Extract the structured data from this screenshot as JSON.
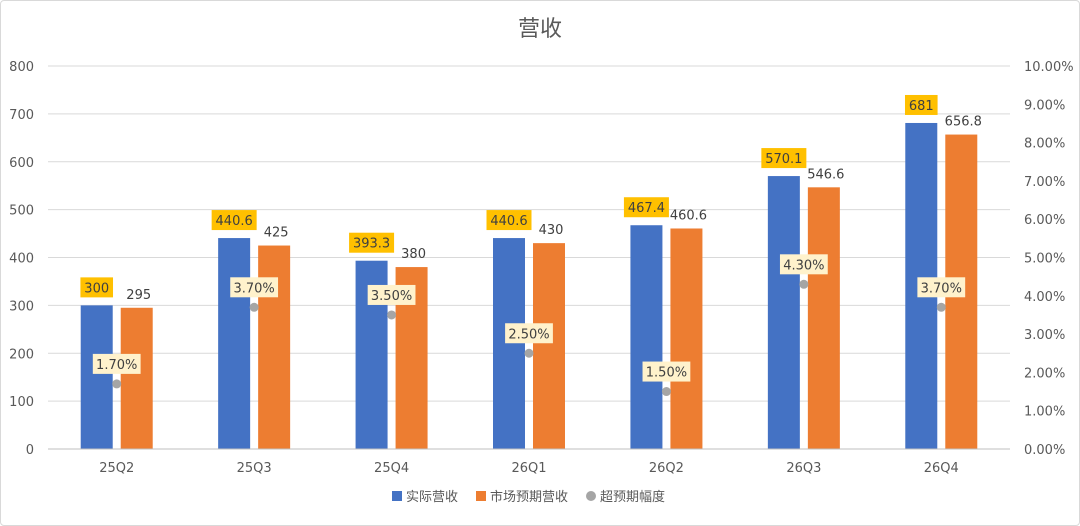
{
  "chart_data": {
    "type": "bar",
    "title": "营收",
    "categories": [
      "25Q2",
      "25Q3",
      "25Q4",
      "26Q1",
      "26Q2",
      "26Q3",
      "26Q4"
    ],
    "series": [
      {
        "name": "实际营收",
        "values": [
          300,
          440.6,
          393.3,
          440.6,
          467.4,
          570.1,
          681
        ],
        "labels": [
          "300",
          "440.6",
          "393.3",
          "440.6",
          "467.4",
          "570.1",
          "681"
        ],
        "color": "#4472c4",
        "axis": "left"
      },
      {
        "name": "市场预期营收",
        "values": [
          295,
          425,
          380,
          430,
          460.6,
          546.6,
          656.8
        ],
        "labels": [
          "295",
          "425",
          "380",
          "430",
          "460.6",
          "546.6",
          "656.8"
        ],
        "color": "#ed7d31",
        "axis": "left"
      },
      {
        "name": "超预期幅度",
        "type": "scatter",
        "values": [
          1.7,
          3.7,
          3.5,
          2.5,
          1.5,
          4.3,
          3.7
        ],
        "labels": [
          "1.70%",
          "3.70%",
          "3.50%",
          "2.50%",
          "1.50%",
          "4.30%",
          "3.70%"
        ],
        "color": "#a5a5a5",
        "axis": "right"
      }
    ],
    "y_left": {
      "range": [
        0,
        800
      ],
      "ticks": [
        "0",
        "100",
        "200",
        "300",
        "400",
        "500",
        "600",
        "700",
        "800"
      ]
    },
    "y_right": {
      "range": [
        0,
        10
      ],
      "ticks": [
        "0.00%",
        "1.00%",
        "2.00%",
        "3.00%",
        "4.00%",
        "5.00%",
        "6.00%",
        "7.00%",
        "8.00%",
        "9.00%",
        "10.00%"
      ]
    },
    "grid": true,
    "legend": "bottom",
    "label_colors": {
      "actual_bg": "#ffc000",
      "pct_bg": "#fff2cc",
      "grid": "#d9d9d9",
      "axis": "#bfbfbf"
    }
  }
}
